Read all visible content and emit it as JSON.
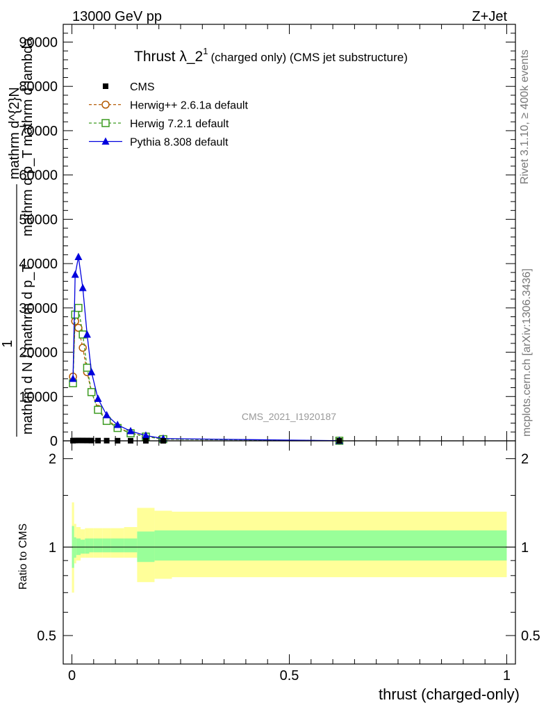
{
  "header": {
    "left": "13000 GeV pp",
    "right": "Z+Jet"
  },
  "side_labels": {
    "rivet": "Rivet 3.1.10, ≥ 400k events",
    "mcplots": "mcplots.cern.ch [arXiv:1306.3436]"
  },
  "chart_data": [
    {
      "type": "line",
      "title": "Thrust λ_2",
      "title_sup": "1",
      "title_suffix": "(charged only) (CMS jet substructure)",
      "watermark": "CMS_2021_I1920187",
      "ylabel_parts": [
        "mathrm d^{2}N",
        "mathrm d p_T mathrm d lambda",
        "1",
        "mathrm d N / mathrm d p_T"
      ],
      "xlim": [
        -0.02,
        1.02
      ],
      "ylim": [
        0,
        94000
      ],
      "yticks": [
        0,
        10000,
        20000,
        30000,
        40000,
        50000,
        60000,
        70000,
        80000,
        90000
      ],
      "ytick_labels": [
        "0",
        "10000",
        "20000",
        "30000",
        "40000",
        "50000",
        "60000",
        "70000",
        "80000",
        "90000"
      ],
      "legend_position": "top-left",
      "series": [
        {
          "name": "CMS",
          "color": "#000000",
          "marker": "square-filled",
          "x": [
            0.0025,
            0.0075,
            0.015,
            0.025,
            0.035,
            0.045,
            0.06,
            0.08,
            0.105,
            0.135,
            0.17,
            0.21,
            0.615
          ],
          "values": [
            40,
            70,
            80,
            75,
            70,
            60,
            50,
            40,
            30,
            22,
            15,
            10,
            1
          ]
        },
        {
          "name": "Herwig++ 2.6.1a default",
          "color": "#b35900",
          "marker": "circle-open",
          "dash": true,
          "x": [
            0.0025,
            0.0075,
            0.015,
            0.025,
            0.035,
            0.045,
            0.06,
            0.08,
            0.105,
            0.135,
            0.17,
            0.21,
            0.615
          ],
          "values": [
            14500,
            27000,
            25500,
            21000,
            15500,
            11000,
            7200,
            4800,
            3000,
            1800,
            1000,
            400,
            20
          ]
        },
        {
          "name": "Herwig 7.2.1 default",
          "color": "#3a9a1f",
          "marker": "square-open",
          "dash": true,
          "x": [
            0.0025,
            0.0075,
            0.015,
            0.025,
            0.035,
            0.045,
            0.06,
            0.08,
            0.105,
            0.135,
            0.17,
            0.21,
            0.615
          ],
          "values": [
            13000,
            28500,
            30000,
            24000,
            16500,
            11000,
            7000,
            4500,
            2900,
            1700,
            950,
            380,
            20
          ]
        },
        {
          "name": "Pythia 8.308 default",
          "color": "#0000dd",
          "marker": "triangle-filled",
          "dash": false,
          "x": [
            0.0025,
            0.0075,
            0.015,
            0.025,
            0.035,
            0.045,
            0.06,
            0.08,
            0.105,
            0.135,
            0.17,
            0.21,
            0.615
          ],
          "values": [
            14000,
            37500,
            41500,
            34500,
            24000,
            15500,
            9500,
            5800,
            3600,
            2200,
            1200,
            500,
            25
          ]
        }
      ]
    },
    {
      "type": "area",
      "ylabel": "Ratio to CMS",
      "xlabel": "thrust (charged-only)",
      "xlim": [
        -0.02,
        1.02
      ],
      "ylim": [
        0.4,
        2.3
      ],
      "log_y": true,
      "yticks": [
        0.5,
        1,
        2
      ],
      "ytick_labels": [
        "0.5",
        "1",
        "2"
      ],
      "xticks": [
        0,
        0.5,
        1
      ],
      "xtick_labels": [
        "0",
        "0.5",
        "1"
      ],
      "reference": 1,
      "bins": [
        0,
        0.005,
        0.01,
        0.02,
        0.03,
        0.04,
        0.05,
        0.07,
        0.09,
        0.12,
        0.15,
        0.19,
        0.23,
        1.0
      ],
      "inner_band": [
        [
          0.85,
          1.18
        ],
        [
          0.92,
          1.08
        ],
        [
          0.94,
          1.07
        ],
        [
          0.95,
          1.06
        ],
        [
          0.95,
          1.07
        ],
        [
          0.96,
          1.07
        ],
        [
          0.96,
          1.07
        ],
        [
          0.96,
          1.07
        ],
        [
          0.96,
          1.07
        ],
        [
          0.96,
          1.07
        ],
        [
          0.89,
          1.13
        ],
        [
          0.9,
          1.14
        ],
        [
          0.9,
          1.14
        ]
      ],
      "outer_band": [
        [
          0.7,
          1.42
        ],
        [
          0.88,
          1.2
        ],
        [
          0.9,
          1.17
        ],
        [
          0.92,
          1.15
        ],
        [
          0.92,
          1.16
        ],
        [
          0.92,
          1.16
        ],
        [
          0.92,
          1.16
        ],
        [
          0.92,
          1.16
        ],
        [
          0.92,
          1.16
        ],
        [
          0.92,
          1.17
        ],
        [
          0.76,
          1.36
        ],
        [
          0.78,
          1.33
        ],
        [
          0.79,
          1.32
        ]
      ],
      "inner_color": "#99ff99",
      "outer_color": "#ffff99"
    }
  ]
}
